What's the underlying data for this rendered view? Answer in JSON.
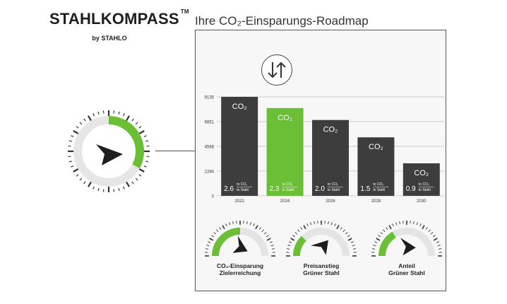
{
  "brand": {
    "name": "STAHLKOMPASS",
    "tm": "TM",
    "byline": "by STAHLO"
  },
  "roadmap_title": "Ihre CO₂-Einsparungs-Roadmap",
  "icons": {
    "trend_toggle": "arrows-down-up-icon",
    "compass": "compass-needle-icon"
  },
  "colors": {
    "accent_green": "#6abf36",
    "bar_dark": "#3d3d3d",
    "needle": "#1e1e1e"
  },
  "chart_data": {
    "type": "bar",
    "categories": [
      "2022",
      "2024",
      "2026",
      "2028",
      "2030"
    ],
    "values": [
      9135,
      8100,
      7000,
      5400,
      3000
    ],
    "y_ticks": [
      0,
      2284,
      4568,
      6851,
      9135
    ],
    "ylim": [
      0,
      9135
    ],
    "grid": true,
    "highlight_index": 1,
    "bar_label": "CO₂",
    "ratios": [
      "2.6",
      "2.3",
      "2.0",
      "1.5",
      "0.9"
    ],
    "ratio_unit_top": "to CO₂",
    "ratio_unit_bottom": "to Stahl"
  },
  "main_compass": {
    "green_fraction": 0.33
  },
  "gauges": [
    {
      "label_line1": "CO₂-Einsparung",
      "label_line2": "Zielerreichung",
      "green_fraction": 0.5,
      "needle_angle": 35
    },
    {
      "label_line1": "Preisanstieg",
      "label_line2": "Grüner Stahl",
      "green_fraction": 0.25,
      "needle_angle": -40
    },
    {
      "label_line1": "Anteil",
      "label_line2": "Grüner Stahl",
      "green_fraction": 0.33,
      "needle_angle": 10
    }
  ]
}
